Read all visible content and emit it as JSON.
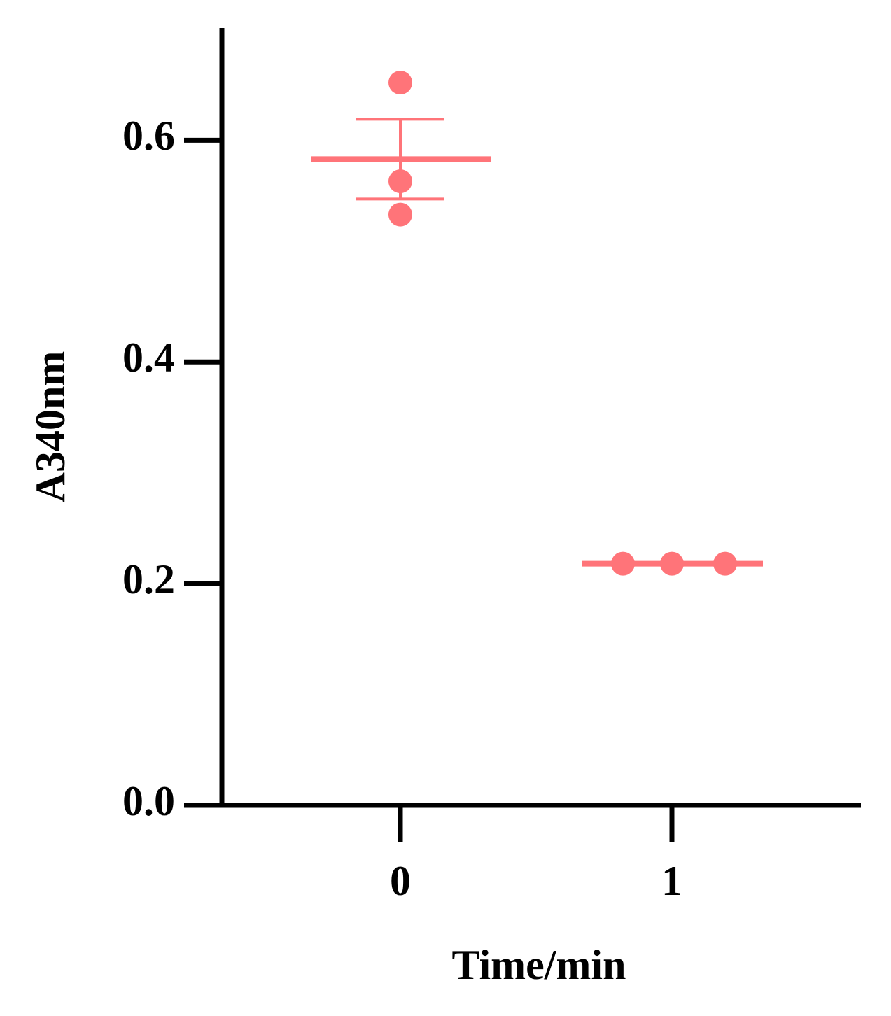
{
  "chart_data": {
    "type": "dot",
    "x_label": "Time/min",
    "y_label": "A340nm",
    "categories": [
      "0",
      "1"
    ],
    "values": [
      [
        0.652,
        0.563,
        0.533
      ],
      [
        0.218,
        0.218,
        0.218
      ]
    ],
    "mean": [
      0.583,
      0.218
    ],
    "error": [
      0.036,
      0.0
    ],
    "color": "#ff7479",
    "ylim": [
      0,
      0.7
    ],
    "yticks": [
      {
        "value": 0,
        "label": "0.0"
      },
      0.2,
      0.4,
      0.6
    ]
  }
}
